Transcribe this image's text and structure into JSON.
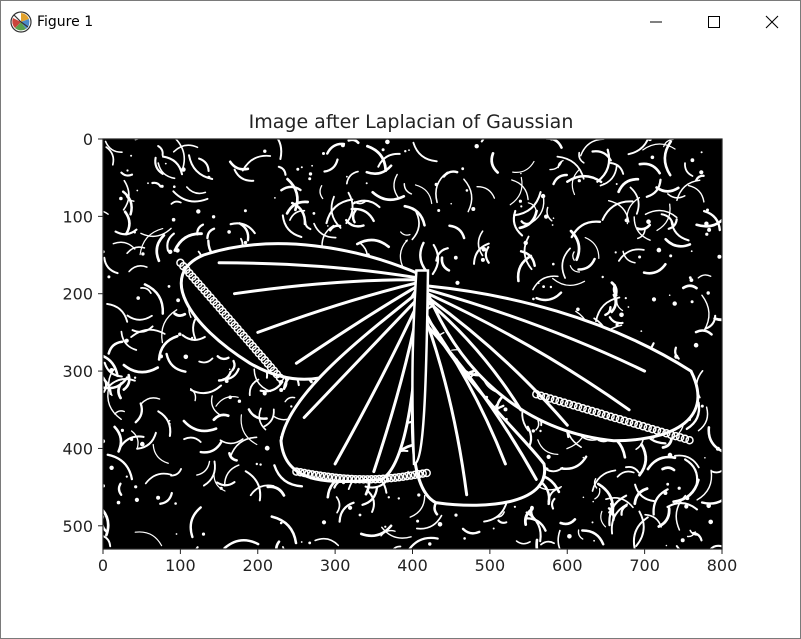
{
  "window": {
    "title": "Figure 1",
    "icons": {
      "app": "matplotlib-figure-icon",
      "minimize": "minimize-icon",
      "maximize": "maximize-icon",
      "close": "close-icon"
    }
  },
  "chart_data": {
    "type": "image",
    "title": "Image after Laplacian of Gaussian",
    "xlabel": "",
    "ylabel": "",
    "x_ticks": [
      0,
      100,
      200,
      300,
      400,
      500,
      600,
      700,
      800
    ],
    "y_ticks": [
      0,
      100,
      200,
      300,
      400,
      500
    ],
    "xlim": [
      0,
      800
    ],
    "ylim": [
      530,
      0
    ],
    "y_axis_inverted": true,
    "grid": false,
    "colormap": "binary (black background, white edges)",
    "image_content": "edge-detected monarch butterfly on flowers and leaves"
  },
  "colors": {
    "background": "#ffffff",
    "image_bg": "#000000",
    "edges": "#ffffff",
    "axis": "#222222"
  }
}
